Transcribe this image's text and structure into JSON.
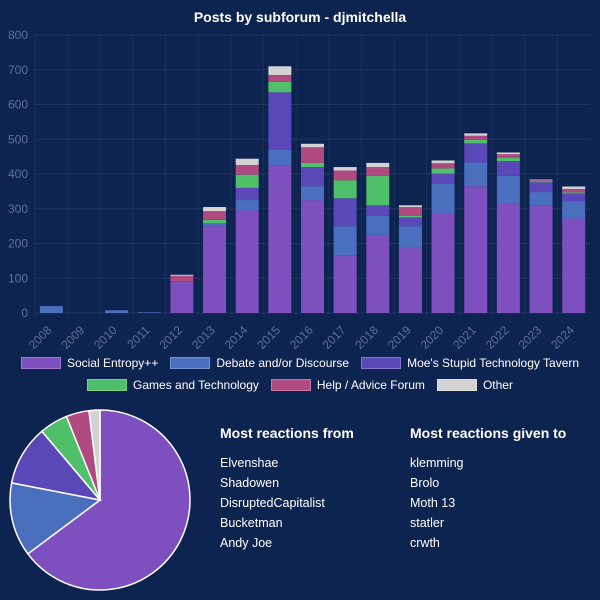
{
  "chart_data": [
    {
      "type": "bar",
      "stacked": true,
      "title": "Posts by subforum - djmitchella",
      "categories": [
        "2008",
        "2009",
        "2010",
        "2011",
        "2012",
        "2013",
        "2014",
        "2015",
        "2016",
        "2017",
        "2018",
        "2019",
        "2020",
        "2021",
        "2022",
        "2023",
        "2024"
      ],
      "ylim": [
        0,
        800
      ],
      "yticks": [
        0,
        100,
        200,
        300,
        400,
        500,
        600,
        700,
        800
      ],
      "grid": true,
      "legend_position": "bottom",
      "series": [
        {
          "name": "Social Entropy++",
          "color": "#7e4fbf",
          "values": [
            0,
            0,
            0,
            0,
            90,
            250,
            295,
            425,
            325,
            165,
            225,
            190,
            285,
            365,
            315,
            310,
            272
          ]
        },
        {
          "name": "Debate and/or Discourse",
          "color": "#4a6fbf",
          "values": [
            20,
            0,
            8,
            2,
            2,
            8,
            30,
            45,
            40,
            85,
            55,
            60,
            88,
            68,
            80,
            38,
            50
          ]
        },
        {
          "name": "Moe's Stupid Technology Tavern",
          "color": "#5a47b8",
          "values": [
            0,
            0,
            0,
            0,
            0,
            0,
            35,
            165,
            55,
            80,
            30,
            25,
            28,
            55,
            42,
            28,
            22
          ]
        },
        {
          "name": "Games and Technology",
          "color": "#4fbf6a",
          "values": [
            0,
            0,
            0,
            0,
            0,
            10,
            38,
            30,
            12,
            52,
            85,
            5,
            15,
            10,
            10,
            3,
            3
          ]
        },
        {
          "name": "Help / Advice Forum",
          "color": "#b04a80",
          "values": [
            0,
            0,
            0,
            0,
            15,
            25,
            28,
            20,
            45,
            28,
            25,
            25,
            15,
            12,
            10,
            3,
            10
          ]
        },
        {
          "name": "Other",
          "color": "#d3d3d3",
          "values": [
            0,
            0,
            0,
            0,
            3,
            12,
            18,
            25,
            10,
            10,
            12,
            5,
            8,
            7,
            5,
            2,
            7
          ]
        }
      ]
    },
    {
      "type": "pie",
      "slices": [
        {
          "name": "Social Entropy++",
          "value": 66.1,
          "color": "#7e4fbf"
        },
        {
          "name": "Debate and/or Discourse",
          "value": 13.5,
          "color": "#4a6fbf"
        },
        {
          "name": "Moe's Stupid Technology Tavern",
          "value": 11.0,
          "color": "#5a47b8"
        },
        {
          "name": "Games and Technology",
          "value": 5.2,
          "color": "#4fbf6a"
        },
        {
          "name": "Help / Advice Forum",
          "value": 4.2,
          "color": "#b04a80"
        },
        {
          "name": "Other",
          "value": 2.0,
          "color": "#d3d3d3"
        }
      ]
    }
  ],
  "reactions_from": {
    "title": "Most reactions from",
    "names": [
      "Elvenshae",
      "Shadowen",
      "DisruptedCapitalist",
      "Bucketman",
      "Andy Joe"
    ]
  },
  "reactions_to": {
    "title": "Most reactions given to",
    "names": [
      "klemming",
      "Brolo",
      "Moth 13",
      "statler",
      "crwth"
    ]
  }
}
